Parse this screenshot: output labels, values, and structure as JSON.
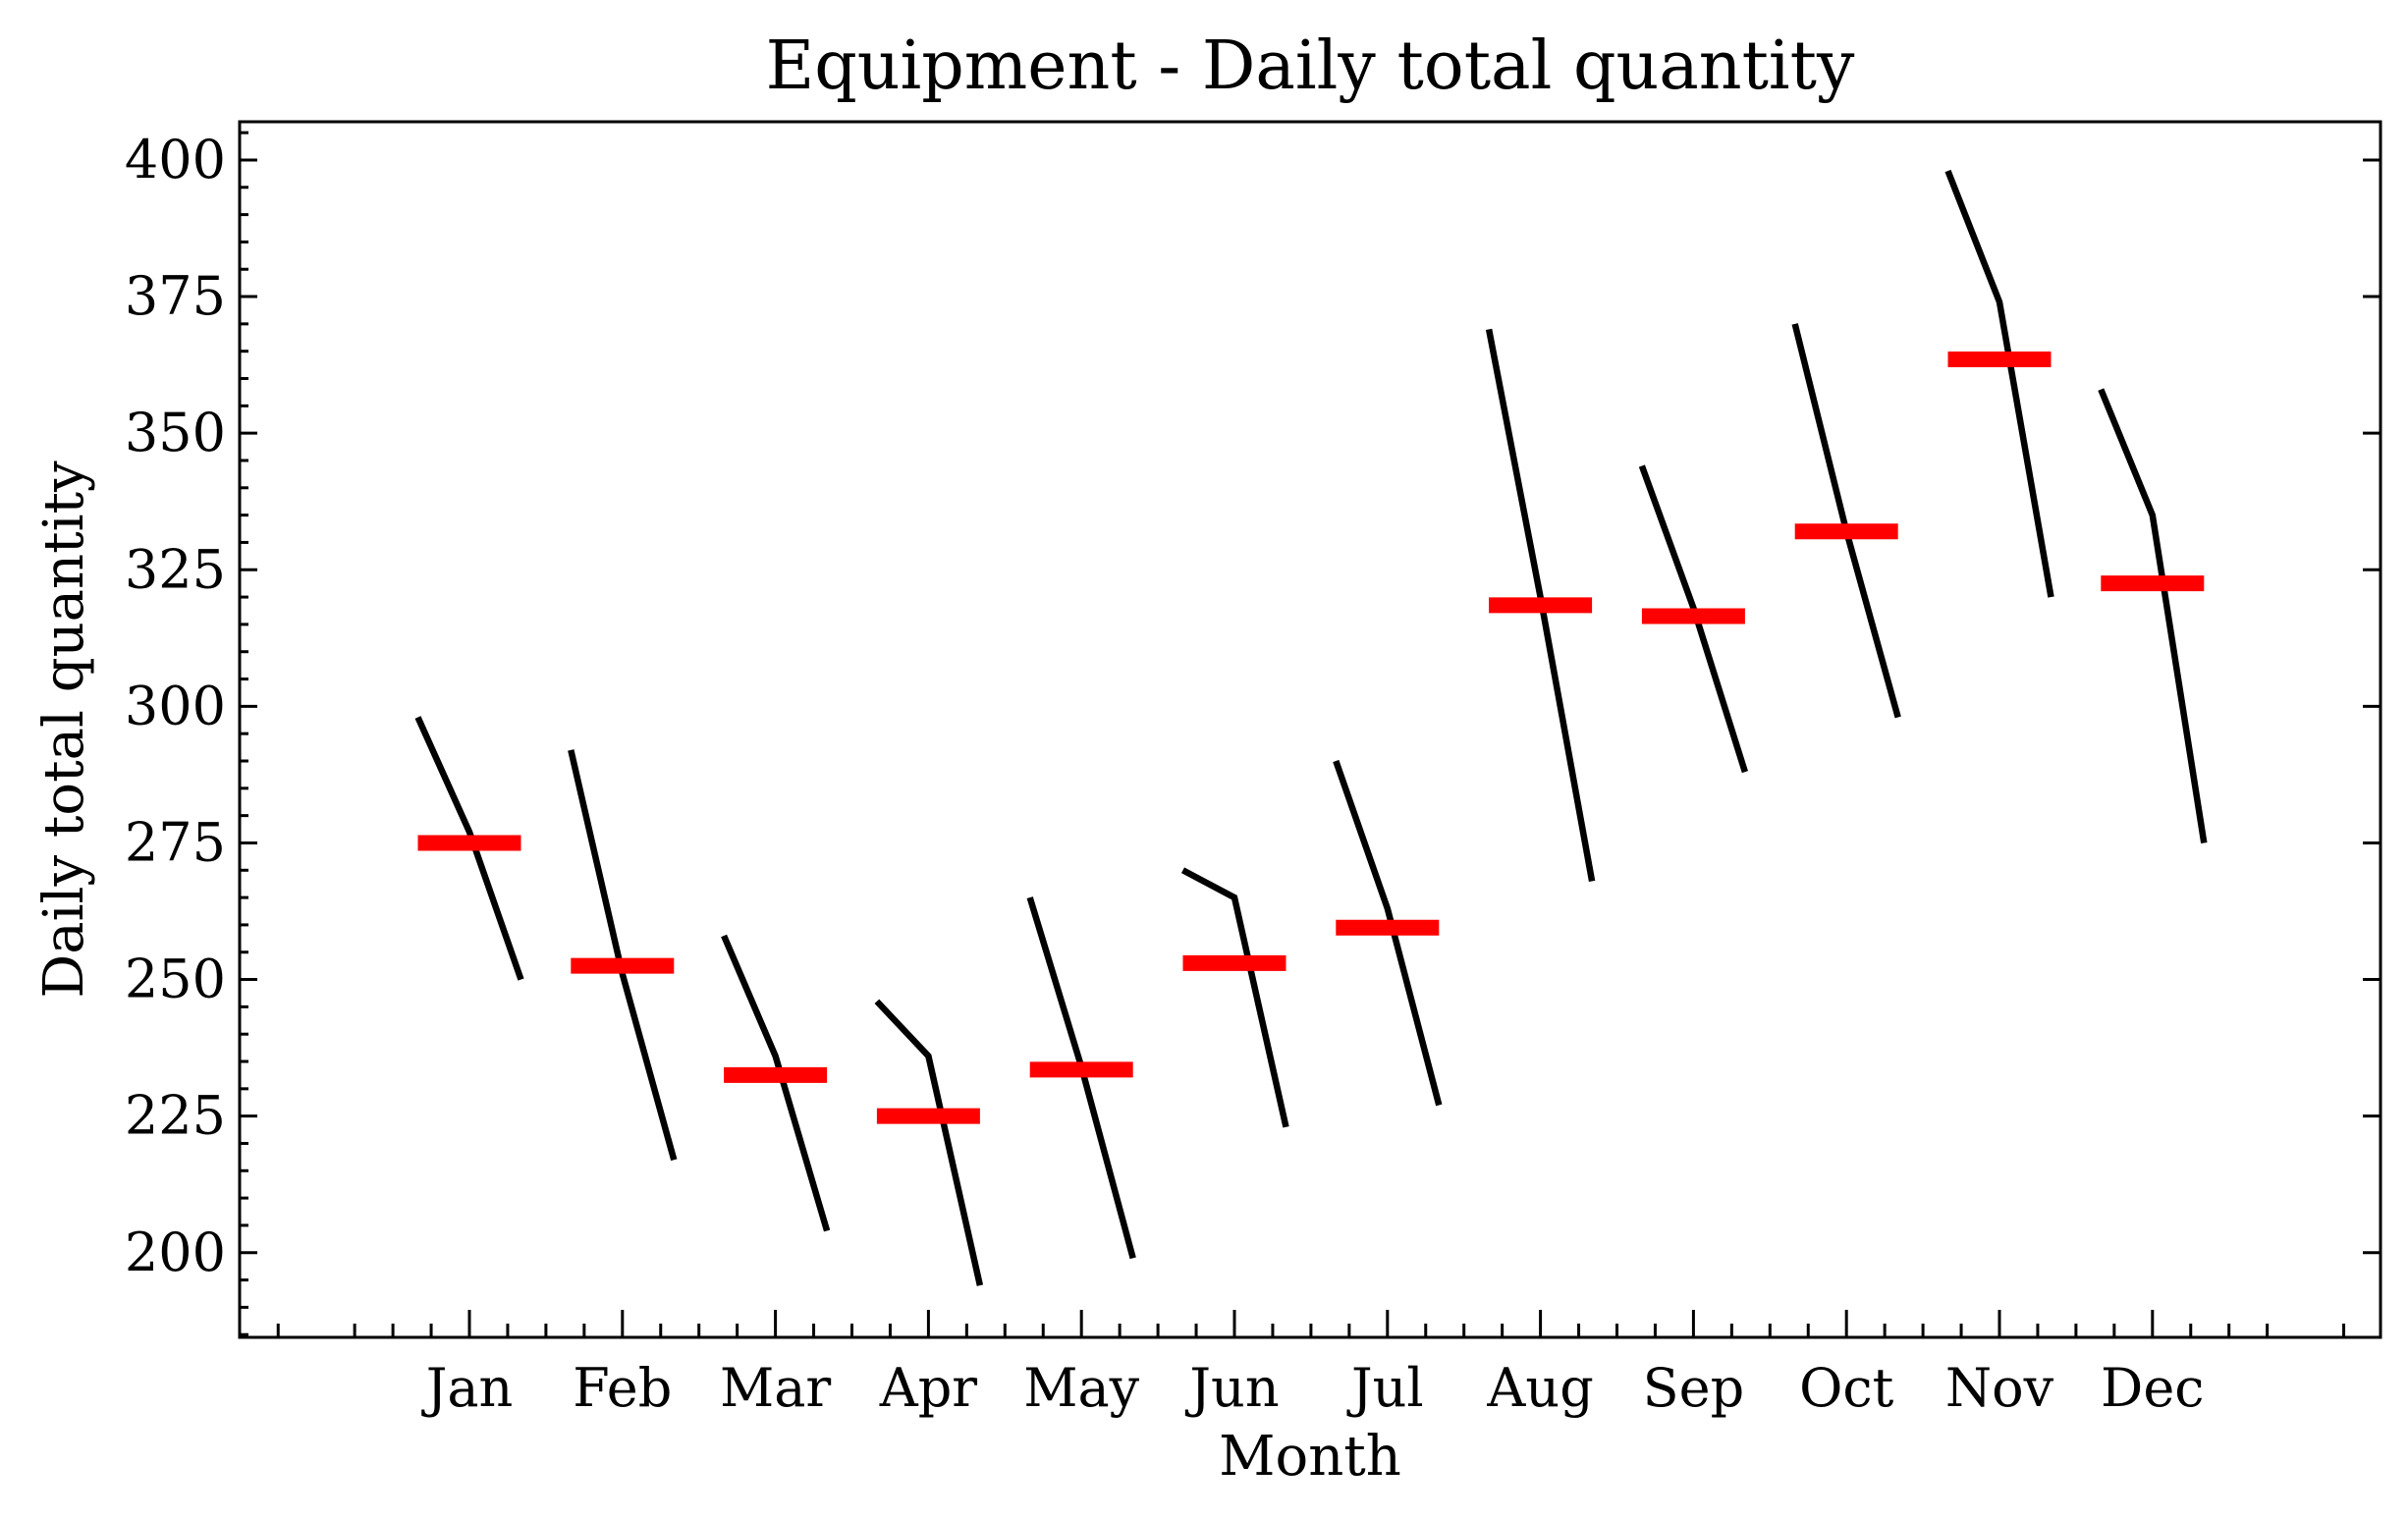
{
  "chart_data": {
    "type": "line",
    "title": "Equipment - Daily total quantity",
    "xlabel": "Month",
    "ylabel": "Daily total quantity",
    "ylim": [
      184.5,
      407
    ],
    "yticks": [
      200,
      225,
      250,
      275,
      300,
      325,
      350,
      375,
      400
    ],
    "categories": [
      "Jan",
      "Feb",
      "Mar",
      "Apr",
      "May",
      "Jun",
      "Jul",
      "Aug",
      "Sep",
      "Oct",
      "Nov",
      "Dec"
    ],
    "series": [
      {
        "values": [
          [
            298,
            277,
            250
          ],
          [
            292,
            251,
            217
          ],
          [
            258,
            236,
            204
          ],
          [
            246,
            236,
            194
          ],
          [
            265,
            234,
            199
          ],
          [
            270,
            265,
            223
          ],
          [
            290,
            263,
            227
          ],
          [
            369,
            320,
            268
          ],
          [
            344,
            318,
            288
          ],
          [
            370,
            332,
            298
          ],
          [
            398,
            374,
            320
          ],
          [
            358,
            335,
            275
          ]
        ]
      }
    ],
    "means": [
      275,
      252.5,
      232.5,
      225,
      233.5,
      253,
      259.5,
      318.5,
      316.5,
      332,
      363.5,
      322.5
    ],
    "grid": false,
    "colors": {
      "line": "#000000",
      "mean": "#ff0000"
    }
  }
}
